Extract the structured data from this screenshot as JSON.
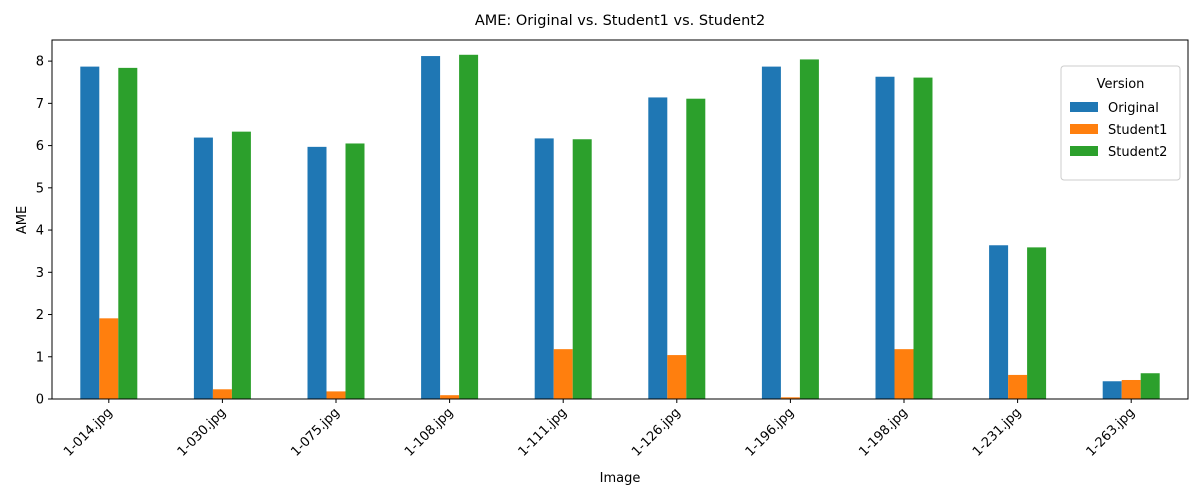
{
  "chart_data": {
    "type": "bar",
    "title": "AME: Original vs. Student1 vs. Student2",
    "xlabel": "Image",
    "ylabel": "AME",
    "ylim": [
      0,
      8.5
    ],
    "yticks": [
      0,
      1,
      2,
      3,
      4,
      5,
      6,
      7,
      8
    ],
    "grid": false,
    "legend": {
      "title": "Version",
      "position": "top-right"
    },
    "categories": [
      "1-014.jpg",
      "1-030.jpg",
      "1-075.jpg",
      "1-108.jpg",
      "1-111.jpg",
      "1-126.jpg",
      "1-196.jpg",
      "1-198.jpg",
      "1-231.jpg",
      "1-263.jpg"
    ],
    "series": [
      {
        "name": "Original",
        "color": "#1f77b4",
        "values": [
          7.87,
          6.19,
          5.97,
          8.12,
          6.17,
          7.14,
          7.87,
          7.63,
          3.64,
          0.42
        ]
      },
      {
        "name": "Student1",
        "color": "#ff7f0e",
        "values": [
          1.91,
          0.23,
          0.18,
          0.09,
          1.18,
          1.04,
          0.04,
          1.18,
          0.57,
          0.45
        ]
      },
      {
        "name": "Student2",
        "color": "#2ca02c",
        "values": [
          7.84,
          6.33,
          6.05,
          8.15,
          6.15,
          7.11,
          8.04,
          7.61,
          3.59,
          0.61
        ]
      }
    ]
  }
}
